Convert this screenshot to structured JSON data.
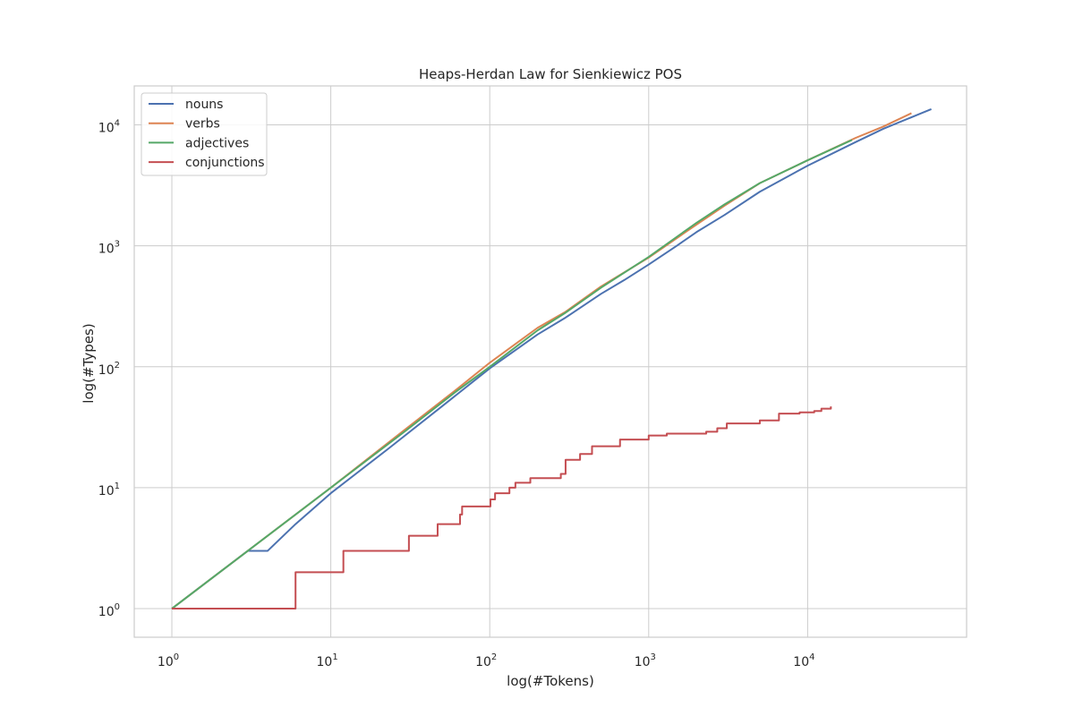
{
  "chart_data": {
    "type": "line",
    "title": "Heaps-Herdan Law for Sienkiewicz POS",
    "xlabel": "log(#Tokens)",
    "ylabel": "log(#Types)",
    "xscale": "log",
    "yscale": "log",
    "xlim": [
      0.58,
      100000
    ],
    "ylim": [
      0.58,
      21000
    ],
    "x_ticks": [
      1,
      10,
      100,
      1000,
      10000
    ],
    "x_tick_labels": [
      {
        "base": "10",
        "exp": "0"
      },
      {
        "base": "10",
        "exp": "1"
      },
      {
        "base": "10",
        "exp": "2"
      },
      {
        "base": "10",
        "exp": "3"
      },
      {
        "base": "10",
        "exp": "4"
      }
    ],
    "y_ticks": [
      1,
      10,
      100,
      1000,
      10000
    ],
    "y_tick_labels": [
      {
        "base": "10",
        "exp": "0"
      },
      {
        "base": "10",
        "exp": "1"
      },
      {
        "base": "10",
        "exp": "2"
      },
      {
        "base": "10",
        "exp": "3"
      },
      {
        "base": "10",
        "exp": "4"
      }
    ],
    "grid": true,
    "legend_position": "top-left",
    "series": [
      {
        "name": "nouns",
        "color": "#4c72b0",
        "step": false,
        "x": [
          1,
          3,
          4,
          6,
          10,
          23,
          50,
          100,
          200,
          300,
          500,
          700,
          1000,
          1500,
          2000,
          3000,
          5000,
          10000,
          20000,
          30000,
          60000
        ],
        "y": [
          1,
          3,
          3,
          5,
          9,
          21,
          47,
          97,
          185,
          255,
          400,
          520,
          700,
          1000,
          1300,
          1800,
          2800,
          4600,
          7200,
          9300,
          13500
        ]
      },
      {
        "name": "verbs",
        "color": "#dd8452",
        "step": false,
        "x": [
          1,
          3,
          10,
          30,
          60,
          100,
          200,
          300,
          500,
          1000,
          2000,
          3000,
          5000,
          10000,
          20000,
          30000,
          45000
        ],
        "y": [
          1,
          3,
          10,
          31,
          63,
          108,
          210,
          285,
          460,
          800,
          1500,
          2150,
          3300,
          5100,
          7800,
          9700,
          12500
        ]
      },
      {
        "name": "adjectives",
        "color": "#55a868",
        "step": false,
        "x": [
          1,
          3,
          10,
          30,
          60,
          100,
          200,
          300,
          500,
          1000,
          2000,
          3000,
          5000,
          10000,
          19000
        ],
        "y": [
          1,
          3,
          10,
          30,
          61,
          100,
          200,
          280,
          450,
          810,
          1550,
          2200,
          3300,
          5100,
          7500
        ]
      },
      {
        "name": "conjunctions",
        "color": "#c44e52",
        "step": true,
        "x": [
          1,
          5,
          6,
          11,
          12,
          24,
          31,
          47,
          65,
          67,
          101,
          108,
          133,
          145,
          180,
          280,
          300,
          370,
          440,
          660,
          1000,
          1300,
          2300,
          2700,
          3100,
          5000,
          6600,
          8900,
          11000,
          12200,
          14000
        ],
        "y": [
          1,
          1,
          2,
          2,
          3,
          3,
          4,
          5,
          6,
          7,
          8,
          9,
          10,
          11,
          12,
          13,
          17,
          19,
          22,
          25,
          27,
          28,
          29,
          31,
          34,
          36,
          41,
          42,
          43,
          45,
          47
        ]
      }
    ]
  }
}
